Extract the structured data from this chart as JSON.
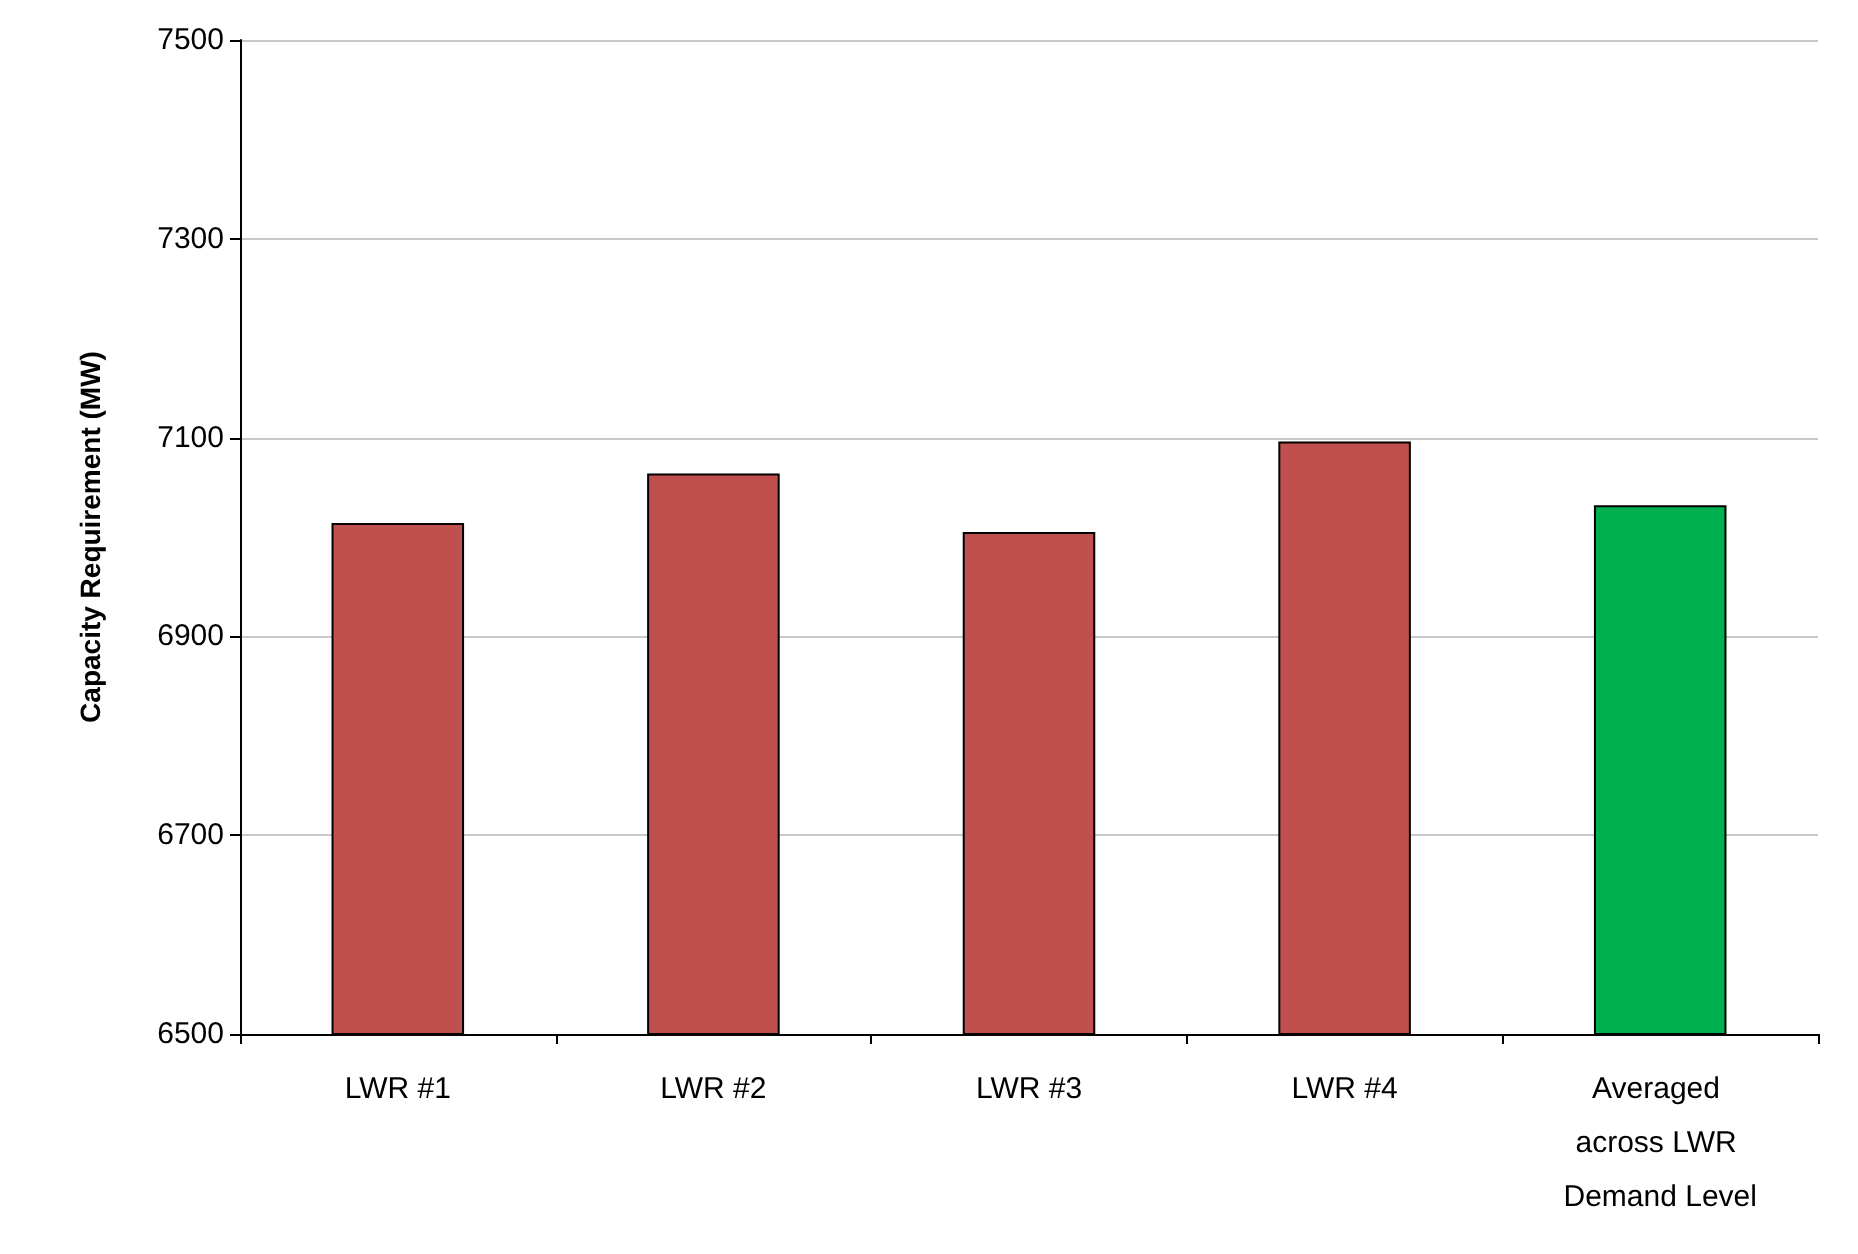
{
  "chart_data": {
    "type": "bar",
    "ylabel": "Capacity Requirement (MW)",
    "categories": [
      "LWR #1",
      "LWR #2",
      "LWR #3",
      "LWR #4",
      "Averaged across LWR Demand Level"
    ],
    "values": [
      7014,
      7064,
      7005,
      7096,
      7032
    ],
    "colors": [
      "#c0504d",
      "#c0504d",
      "#c0504d",
      "#c0504d",
      "#00b050"
    ],
    "ylim": [
      6500,
      7500
    ],
    "yticks": [
      6500,
      6700,
      6900,
      7100,
      7300,
      7500
    ],
    "grid": "y"
  }
}
